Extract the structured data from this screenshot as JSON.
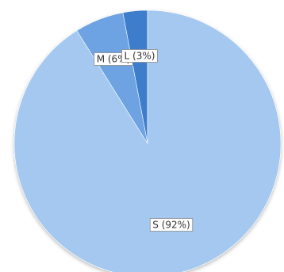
{
  "chart_data": {
    "type": "pie",
    "title": "",
    "categories": [
      "S",
      "M",
      "L"
    ],
    "values": [
      92,
      6,
      3
    ],
    "labels": [
      "S (92%)",
      "M (6%)",
      "L (3%)"
    ],
    "colors": [
      "#a4c8ef",
      "#6da3e2",
      "#3d7dcc"
    ],
    "start": "top",
    "direction": "counterclockwise",
    "legend": "none",
    "shadow": true
  }
}
